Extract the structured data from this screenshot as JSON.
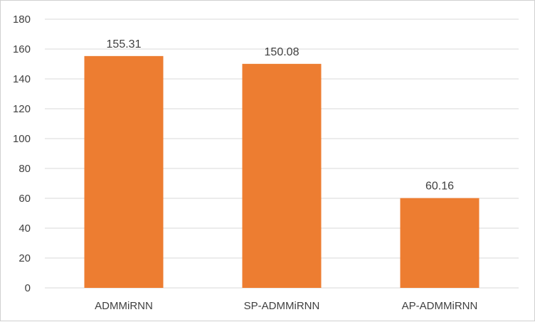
{
  "chart_data": {
    "type": "bar",
    "title": "",
    "xlabel": "",
    "ylabel": "",
    "categories": [
      "ADMMiRNN",
      "SP-ADMMiRNN",
      "AP-ADMMiRNN"
    ],
    "values": [
      155.31,
      150.08,
      60.16
    ],
    "value_labels": [
      "155.31",
      "150.08",
      "60.16"
    ],
    "ylim": [
      0,
      180
    ],
    "yticks": [
      0,
      20,
      40,
      60,
      80,
      100,
      120,
      140,
      160,
      180
    ],
    "grid": true,
    "legend": "none",
    "bar_color": "#ed7d31",
    "grid_color": "#d9d9d9"
  }
}
